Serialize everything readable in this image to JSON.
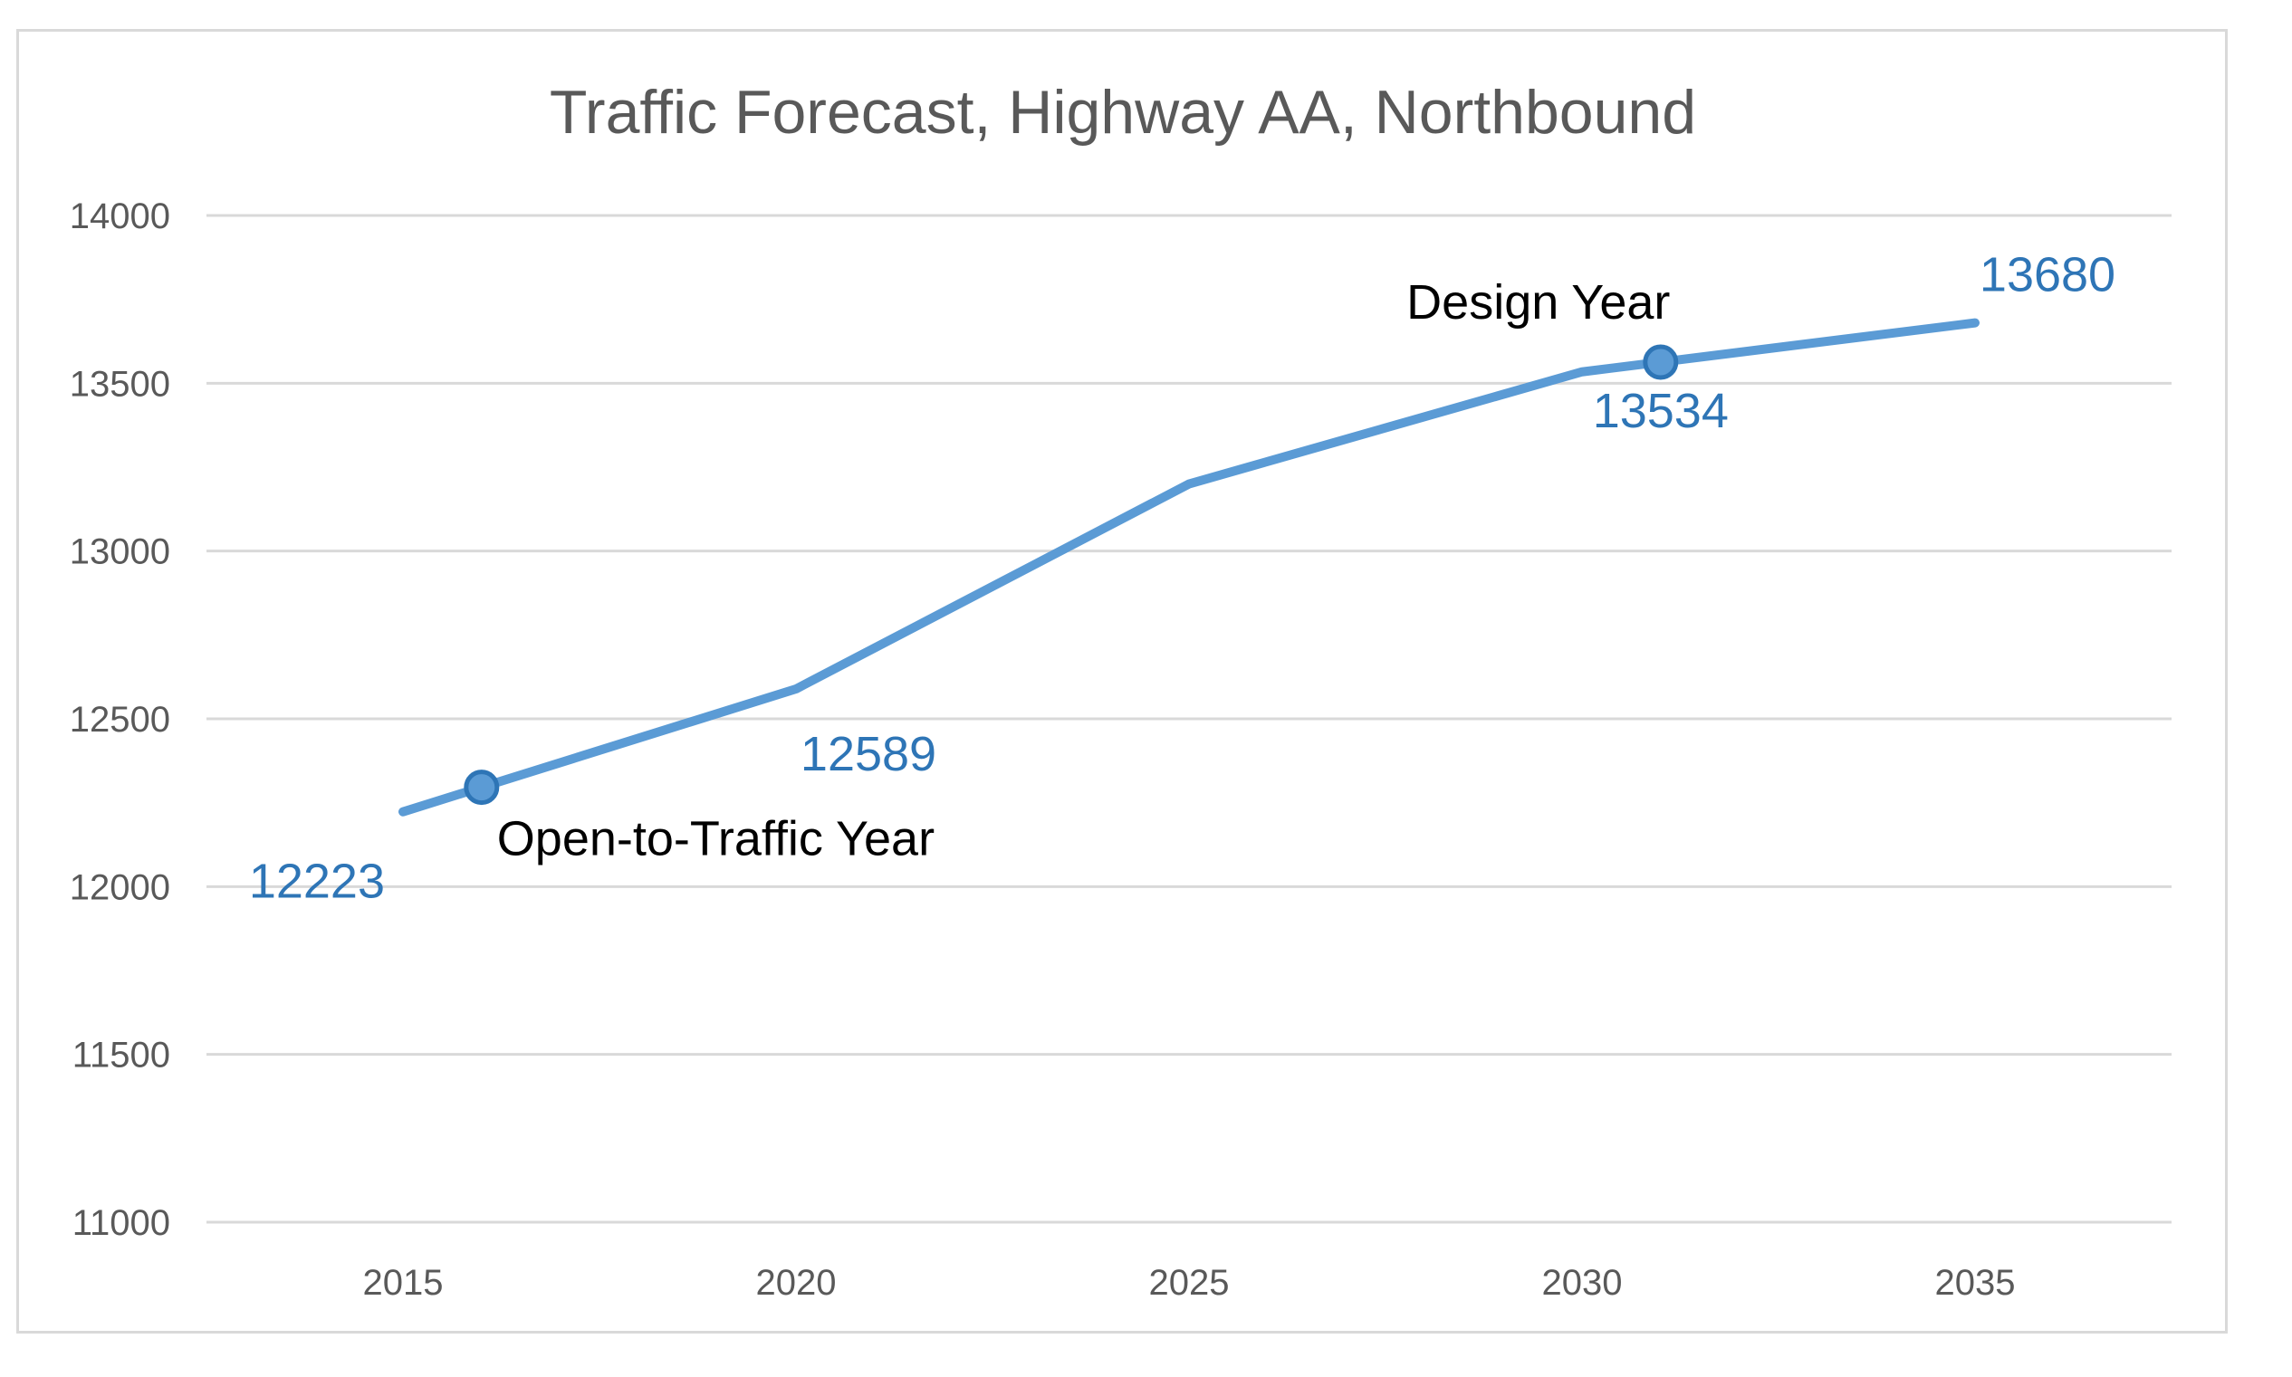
{
  "chart_data": {
    "type": "line",
    "title": "Traffic Forecast, Highway AA, Northbound",
    "xlabel": "",
    "ylabel": "",
    "x": [
      2015,
      2020,
      2025,
      2030,
      2035
    ],
    "series": [
      {
        "values": [
          12223,
          12589,
          13200,
          13534,
          13680
        ],
        "color": "#5b9bd5"
      }
    ],
    "ylim": [
      11000,
      14000
    ],
    "yticks": [
      11000,
      11500,
      12000,
      12500,
      13000,
      13500,
      14000
    ],
    "xlim": [
      2012.5,
      2037.5
    ],
    "grid": true,
    "legend": "none",
    "data_labels": [
      {
        "x": 2015,
        "text": "12223",
        "anchor": "below-left"
      },
      {
        "x": 2020,
        "text": "12589",
        "anchor": "below"
      },
      {
        "x": 2031,
        "text": "13534",
        "anchor": "below"
      },
      {
        "x": 2035,
        "text": "13680",
        "anchor": "above-right"
      }
    ],
    "markers": [
      {
        "x": 2016,
        "y": 12296
      },
      {
        "x": 2031,
        "y": 13563
      }
    ],
    "annotations": [
      {
        "text": "Open-to-Traffic Year",
        "x": 2016,
        "y": 12296,
        "anchor": "below-right"
      },
      {
        "text": "Design Year",
        "x": 2031,
        "y": 13563,
        "anchor": "above-left"
      }
    ],
    "colors": {
      "line": "#5b9bd5",
      "marker_edge": "#2e75b6",
      "label": "#2e75b6",
      "grid": "#d9d9d9",
      "text": "#595959"
    }
  }
}
